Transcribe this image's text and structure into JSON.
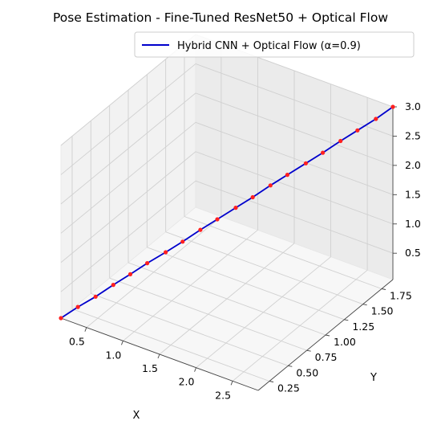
{
  "chart_data": {
    "type": "line",
    "projection": "3d",
    "title": "Pose Estimation - Fine-Tuned ResNet50 + Optical Flow",
    "xlabel": "X",
    "ylabel": "Y",
    "zlabel": "",
    "xlim": [
      0.15,
      2.85
    ],
    "ylim": [
      0.1,
      1.9
    ],
    "zlim": [
      0.05,
      3.0
    ],
    "x_ticks": [
      0.5,
      1.0,
      1.5,
      2.0,
      2.5
    ],
    "x_tick_labels": [
      "0.5",
      "1.0",
      "1.5",
      "2.0",
      "2.5"
    ],
    "y_ticks": [
      0.25,
      0.5,
      0.75,
      1.0,
      1.25,
      1.5,
      1.75
    ],
    "y_tick_labels": [
      "0.25",
      "0.50",
      "0.75",
      "1.00",
      "1.25",
      "1.50",
      "1.75"
    ],
    "z_ticks": [
      0.5,
      1.0,
      1.5,
      2.0,
      2.5,
      3.0
    ],
    "z_tick_labels": [
      "0.5",
      "1.0",
      "1.5",
      "2.0",
      "2.5",
      "3.0"
    ],
    "grid": true,
    "legend_position": "upper-right",
    "series": [
      {
        "name": "Hybrid CNN + Optical Flow (α=0.9)",
        "line_color": "#0000cc",
        "marker_color": "#ff2020",
        "x": [
          0.15,
          0.29,
          0.44,
          0.58,
          0.72,
          0.86,
          1.01,
          1.15,
          1.29,
          1.43,
          1.58,
          1.72,
          1.86,
          2.0,
          2.15,
          2.29,
          2.43,
          2.57,
          2.72,
          2.85
        ],
        "y": [
          0.1,
          0.19,
          0.28,
          0.38,
          0.47,
          0.56,
          0.66,
          0.75,
          0.85,
          0.94,
          1.04,
          1.13,
          1.23,
          1.32,
          1.42,
          1.51,
          1.61,
          1.7,
          1.8,
          1.9
        ],
        "z": [
          0.05,
          0.21,
          0.36,
          0.52,
          0.67,
          0.83,
          0.98,
          1.13,
          1.29,
          1.44,
          1.6,
          1.75,
          1.91,
          2.06,
          2.22,
          2.37,
          2.53,
          2.68,
          2.84,
          3.0
        ]
      }
    ]
  }
}
